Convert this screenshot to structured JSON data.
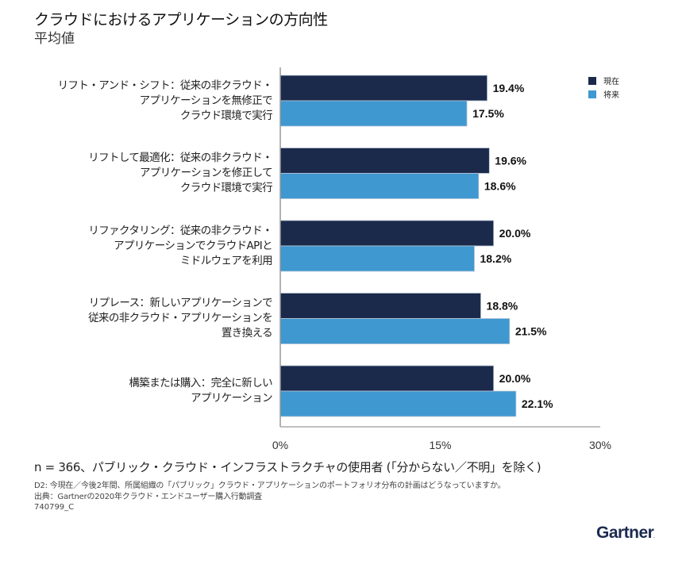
{
  "header": {
    "title": "クラウドにおけるアプリケーションの方向性",
    "subtitle": "平均値"
  },
  "chart_data": {
    "type": "bar",
    "orientation": "horizontal",
    "title": "クラウドにおけるアプリケーションの方向性",
    "subtitle": "平均値",
    "xlabel": "",
    "ylabel": "",
    "xlim": [
      0,
      30
    ],
    "xticks": [
      0,
      15,
      30
    ],
    "xtick_labels": [
      "0%",
      "15%",
      "30%"
    ],
    "grid": false,
    "legend_position": "top-right",
    "categories": [
      "リフト・アンド・シフト：従来の非クラウド・\nアプリケーションを無修正で\nクラウド環境で実行",
      "リフトして最適化：従来の非クラウド・\nアプリケーションを修正して\nクラウド環境で実行",
      "リファクタリング：従来の非クラウド・\nアプリケーションでクラウドAPIと\nミドルウェアを利用",
      "リプレース：新しいアプリケーションで\n従来の非クラウド・アプリケーションを\n置き換える",
      "構築または購入：完全に新しい\nアプリケーション"
    ],
    "series": [
      {
        "name": "現在",
        "color": "#1b2a4b",
        "values": [
          19.4,
          19.6,
          20.0,
          18.8,
          20.0
        ],
        "labels": [
          "19.4%",
          "19.6%",
          "20.0%",
          "18.8%",
          "20.0%"
        ]
      },
      {
        "name": "将来",
        "color": "#3f98d0",
        "values": [
          17.5,
          18.6,
          18.2,
          21.5,
          22.1
        ],
        "labels": [
          "17.5%",
          "18.6%",
          "18.2%",
          "21.5%",
          "22.1%"
        ]
      }
    ]
  },
  "footer": {
    "sample_note": "n = 366、パブリック・クラウド・インフラストラクチャの使用者 (「分からない／不明」を除く)",
    "question": "D2: 今現在／今後2年間、所属組織の「パブリック」クラウド・アプリケーションのポートフォリオ分布の計画はどうなっていますか。",
    "source": "出典：Gartnerの2020年クラウド・エンドユーザー購入行動調査",
    "doc_id": "740799_C"
  },
  "brand": {
    "logo_text": "Gartner",
    "logo_mark": "."
  }
}
